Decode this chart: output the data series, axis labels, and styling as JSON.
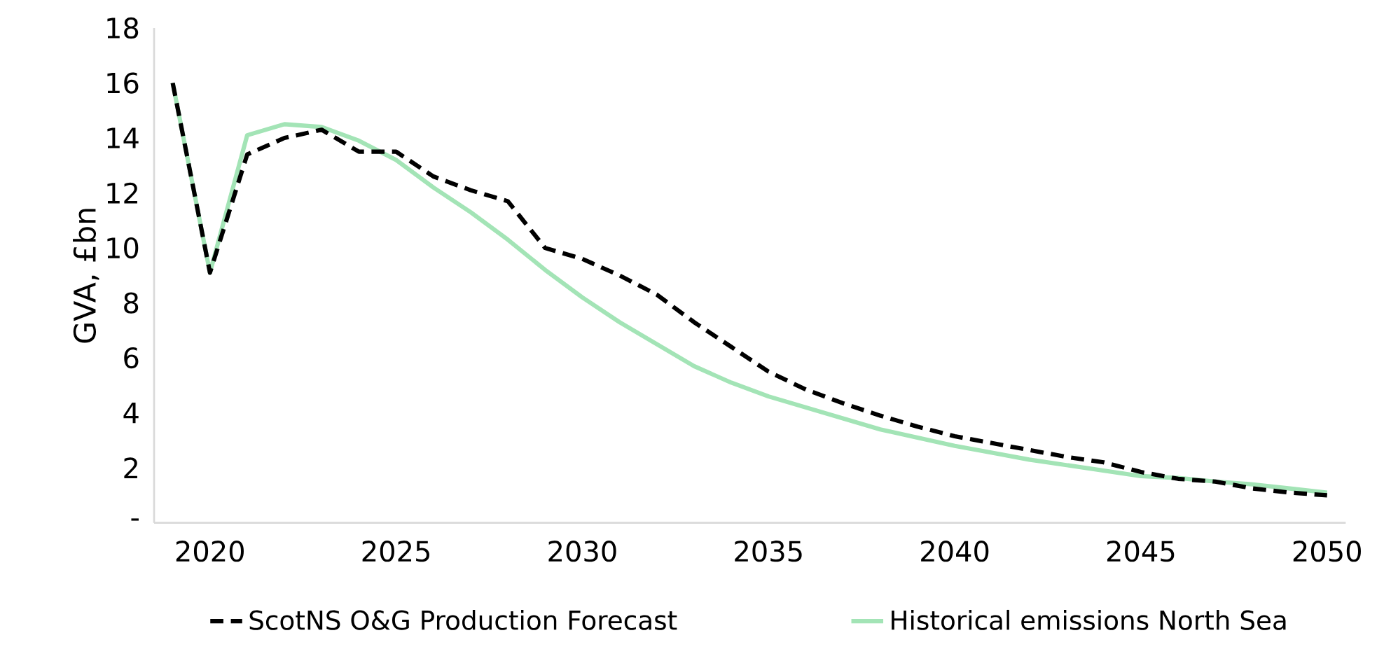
{
  "chart_data": {
    "type": "line",
    "ylabel": "GVA, £bn",
    "x": [
      2019,
      2020,
      2021,
      2022,
      2023,
      2024,
      2025,
      2026,
      2027,
      2028,
      2029,
      2030,
      2031,
      2032,
      2033,
      2034,
      2035,
      2036,
      2037,
      2038,
      2039,
      2040,
      2041,
      2042,
      2043,
      2044,
      2045,
      2046,
      2047,
      2048,
      2049,
      2050
    ],
    "series": [
      {
        "name": "ScotNS O&G Production Forecast",
        "color": "#000000",
        "line_style": "dashed",
        "values": [
          16.0,
          9.1,
          13.4,
          14.0,
          14.3,
          13.5,
          13.5,
          12.6,
          12.1,
          11.7,
          10.0,
          9.6,
          9.0,
          8.3,
          7.3,
          6.4,
          5.5,
          4.85,
          4.35,
          3.9,
          3.5,
          3.15,
          2.9,
          2.65,
          2.4,
          2.2,
          1.85,
          1.6,
          1.5,
          1.25,
          1.1,
          1.0
        ]
      },
      {
        "name": "Historical emissions North Sea",
        "color": "#a3e4b6",
        "line_style": "solid",
        "values": [
          16.0,
          9.1,
          14.1,
          14.5,
          14.4,
          13.9,
          13.2,
          12.2,
          11.3,
          10.3,
          9.2,
          8.2,
          7.3,
          6.5,
          5.7,
          5.1,
          4.6,
          4.2,
          3.8,
          3.4,
          3.1,
          2.8,
          2.55,
          2.3,
          2.1,
          1.9,
          1.7,
          1.63,
          1.5,
          1.4,
          1.25,
          1.1
        ]
      }
    ],
    "xlim": [
      2018.5,
      2050.5
    ],
    "xticks": [
      2020,
      2025,
      2030,
      2035,
      2040,
      2045,
      2050
    ],
    "ylim": [
      0,
      18
    ],
    "yticks": [
      {
        "value": 0,
        "label": "-"
      },
      2,
      4,
      6,
      8,
      10,
      12,
      14,
      16,
      18
    ],
    "grid": false,
    "legend": "bottom"
  }
}
